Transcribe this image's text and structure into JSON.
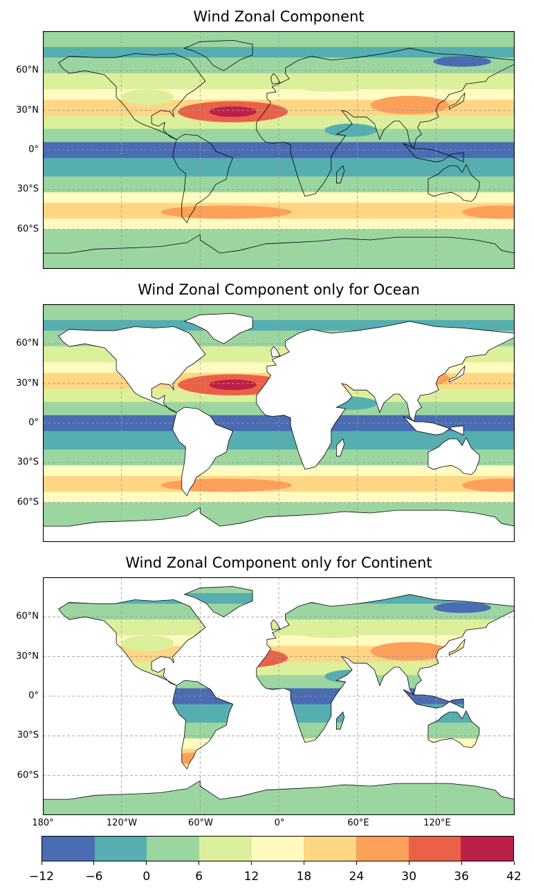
{
  "panels": [
    {
      "title": "Wind Zonal Component",
      "mask": "none"
    },
    {
      "title": "Wind Zonal Component only for Ocean",
      "mask": "ocean"
    },
    {
      "title": "Wind Zonal Component only for Continent",
      "mask": "continent"
    }
  ],
  "lat_labels": [
    "60°N",
    "30°N",
    "0°",
    "30°S",
    "60°S"
  ],
  "lon_labels": [
    "180°",
    "120°W",
    "60°W",
    "0°",
    "60°E",
    "120°E"
  ],
  "colorbar": {
    "ticks": [
      "−12",
      "−6",
      "0",
      "6",
      "12",
      "18",
      "24",
      "30",
      "36",
      "42"
    ],
    "colors": [
      "#4a6cb3",
      "#56aeb0",
      "#9bd6a0",
      "#dcf09c",
      "#fffbc0",
      "#fed684",
      "#fca05a",
      "#eb6147",
      "#bc2049"
    ]
  },
  "chart_data": {
    "type": "heatmap",
    "variable": "Wind Zonal Component",
    "levels": [
      -12,
      -6,
      0,
      6,
      12,
      18,
      24,
      30,
      36,
      42
    ],
    "xlim": [
      -180,
      180
    ],
    "ylim": [
      -90,
      90
    ],
    "grid": true,
    "lat_band_values": [
      {
        "lat": 80,
        "value": 3
      },
      {
        "lat": 65,
        "value": 6
      },
      {
        "lat": 45,
        "value": 12
      },
      {
        "lat": 30,
        "value": 25
      },
      {
        "lat": 20,
        "value": 10
      },
      {
        "lat": 10,
        "value": 0
      },
      {
        "lat": 0,
        "value": -7
      },
      {
        "lat": -15,
        "value": -3
      },
      {
        "lat": -30,
        "value": 8
      },
      {
        "lat": -45,
        "value": 22
      },
      {
        "lat": -55,
        "value": 14
      },
      {
        "lat": -65,
        "value": 3
      },
      {
        "lat": -80,
        "value": 2
      }
    ]
  }
}
